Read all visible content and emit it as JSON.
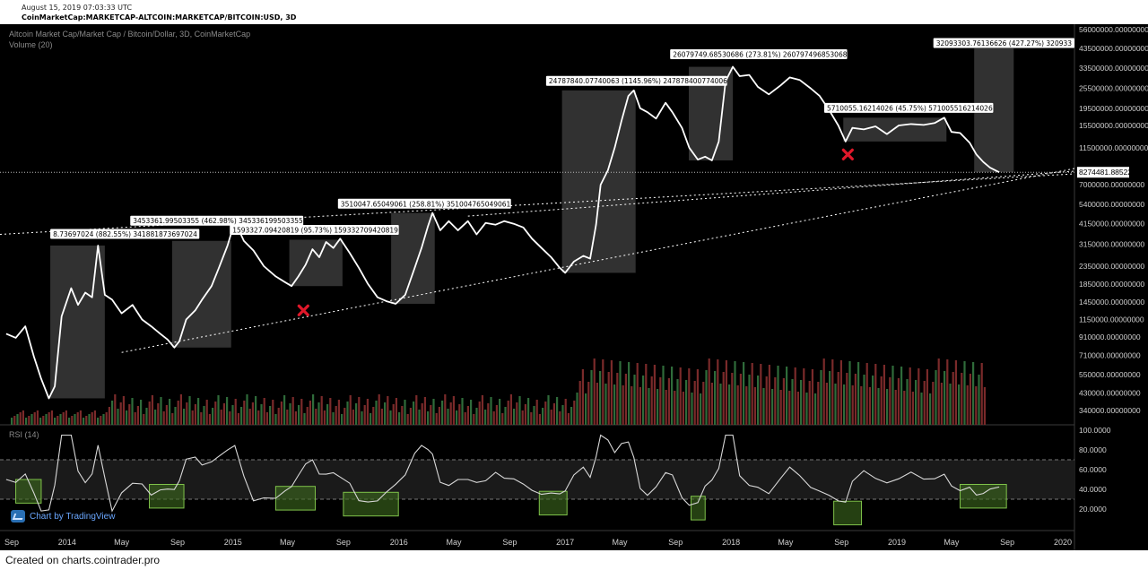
{
  "header": {
    "date": "August 15, 2019 07:03:33 UTC",
    "symbol": "CoinMarketCap:MARKETCAP-ALTCOIN:MARKETCAP/BITCOIN:USD, 3D"
  },
  "footer": {
    "text": "Created on charts.cointrader.pro"
  },
  "tv_badge": {
    "label": "Chart by TradingView"
  },
  "colors": {
    "background": "#000000",
    "price_line": "#ffffff",
    "highlight_box": "#5a5a5a",
    "rsi_box_stroke": "#7fc24a",
    "rsi_box_fill": "#3d6b1e",
    "volume_up": "#2f6b3a",
    "volume_down": "#7a2a2a",
    "marker": "#e0182a"
  },
  "chart_data": {
    "type": "line",
    "title": "Altcoin Market Cap/Market Cap / Bitcoin/Dollar, 3D, CoinMarketCap",
    "volume_label": "Volume (20)",
    "rsi_label": "RSI (14)",
    "scale": "log",
    "x_tick_labels": [
      "Sep",
      "2014",
      "May",
      "Sep",
      "2015",
      "May",
      "Sep",
      "2016",
      "May",
      "Sep",
      "2017",
      "May",
      "Sep",
      "2018",
      "May",
      "Sep",
      "2019",
      "May",
      "Sep",
      "2020"
    ],
    "y_tick_labels": [
      "56000000.00000000",
      "43500000.00000000",
      "33500000.00000000",
      "25500000.00000000",
      "19500000.00000000",
      "15500000.00000000",
      "11500000.00000000",
      "7000000.00000000",
      "5400000.00000000",
      "4150000.00000000",
      "3150000.00000000",
      "2350000.00000000",
      "1850000.00000000",
      "1450000.00000000",
      "1150000.00000000",
      "910000.00000000",
      "710000.00000000",
      "550000.00000000",
      "430000.00000000",
      "340000.00000000"
    ],
    "rsi_tick_labels": [
      "100.0000",
      "80.0000",
      "60.0000",
      "40.0000",
      "20.0000"
    ],
    "last_price_label": "8274481.88522680",
    "annotations": [
      "8.73697024 (882.55%) 341881873697024",
      "3453361.99503355 (462.98%) 345336199503355",
      "1593327.09420819 (95.73%) 159332709420819",
      "3510047.65049061 (258.81%) 351004765049061",
      "24787840.07740063 (1145.96%) 247878400774006",
      "26079749.68530686 (273.81%) 260797496853068",
      "5710055.16214026 (45.75%) 571005516214026",
      "32093303.76136626 (427.27%) 320933"
    ],
    "series": [
      {
        "values": [
          {
            "x": "2013-08-20",
            "y": 950000
          },
          {
            "x": "2013-09-10",
            "y": 900000
          },
          {
            "x": "2013-10-01",
            "y": 1050000
          },
          {
            "x": "2013-10-20",
            "y": 700000
          },
          {
            "x": "2013-11-05",
            "y": 520000
          },
          {
            "x": "2013-11-22",
            "y": 400000
          },
          {
            "x": "2013-12-05",
            "y": 470000
          },
          {
            "x": "2013-12-20",
            "y": 1200000
          },
          {
            "x": "2014-01-10",
            "y": 1750000
          },
          {
            "x": "2014-01-25",
            "y": 1400000
          },
          {
            "x": "2014-02-10",
            "y": 1650000
          },
          {
            "x": "2014-02-25",
            "y": 1550000
          },
          {
            "x": "2014-03-10",
            "y": 3100000
          },
          {
            "x": "2014-03-25",
            "y": 1600000
          },
          {
            "x": "2014-04-10",
            "y": 1500000
          },
          {
            "x": "2014-05-01",
            "y": 1250000
          },
          {
            "x": "2014-05-25",
            "y": 1400000
          },
          {
            "x": "2014-06-15",
            "y": 1150000
          },
          {
            "x": "2014-07-05",
            "y": 1050000
          },
          {
            "x": "2014-07-25",
            "y": 950000
          },
          {
            "x": "2014-08-10",
            "y": 880000
          },
          {
            "x": "2014-08-25",
            "y": 790000
          },
          {
            "x": "2014-09-05",
            "y": 860000
          },
          {
            "x": "2014-09-20",
            "y": 1150000
          },
          {
            "x": "2014-10-10",
            "y": 1300000
          },
          {
            "x": "2014-10-25",
            "y": 1500000
          },
          {
            "x": "2014-11-15",
            "y": 1800000
          },
          {
            "x": "2014-12-01",
            "y": 2300000
          },
          {
            "x": "2014-12-20",
            "y": 3100000
          },
          {
            "x": "2015-01-05",
            "y": 4300000
          },
          {
            "x": "2015-01-25",
            "y": 3300000
          },
          {
            "x": "2015-02-15",
            "y": 2900000
          },
          {
            "x": "2015-03-10",
            "y": 2350000
          },
          {
            "x": "2015-04-05",
            "y": 2050000
          },
          {
            "x": "2015-04-25",
            "y": 1900000
          },
          {
            "x": "2015-05-10",
            "y": 1800000
          },
          {
            "x": "2015-05-25",
            "y": 2050000
          },
          {
            "x": "2015-06-10",
            "y": 2400000
          },
          {
            "x": "2015-06-25",
            "y": 2950000
          },
          {
            "x": "2015-07-10",
            "y": 2650000
          },
          {
            "x": "2015-07-25",
            "y": 3250000
          },
          {
            "x": "2015-08-10",
            "y": 3000000
          },
          {
            "x": "2015-08-25",
            "y": 3400000
          },
          {
            "x": "2015-09-15",
            "y": 2800000
          },
          {
            "x": "2015-10-05",
            "y": 2300000
          },
          {
            "x": "2015-10-25",
            "y": 1850000
          },
          {
            "x": "2015-11-15",
            "y": 1550000
          },
          {
            "x": "2015-12-05",
            "y": 1470000
          },
          {
            "x": "2015-12-25",
            "y": 1420000
          },
          {
            "x": "2016-01-15",
            "y": 1600000
          },
          {
            "x": "2016-02-05",
            "y": 2300000
          },
          {
            "x": "2016-02-20",
            "y": 3000000
          },
          {
            "x": "2016-03-05",
            "y": 4000000
          },
          {
            "x": "2016-03-15",
            "y": 4800000
          },
          {
            "x": "2016-04-01",
            "y": 3800000
          },
          {
            "x": "2016-04-20",
            "y": 4300000
          },
          {
            "x": "2016-05-10",
            "y": 3800000
          },
          {
            "x": "2016-06-01",
            "y": 4300000
          },
          {
            "x": "2016-06-20",
            "y": 3600000
          },
          {
            "x": "2016-07-10",
            "y": 4200000
          },
          {
            "x": "2016-08-01",
            "y": 4100000
          },
          {
            "x": "2016-08-20",
            "y": 4300000
          },
          {
            "x": "2016-09-10",
            "y": 4150000
          },
          {
            "x": "2016-10-01",
            "y": 3950000
          },
          {
            "x": "2016-10-20",
            "y": 3400000
          },
          {
            "x": "2016-11-10",
            "y": 3000000
          },
          {
            "x": "2016-12-01",
            "y": 2650000
          },
          {
            "x": "2016-12-20",
            "y": 2300000
          },
          {
            "x": "2017-01-01",
            "y": 2150000
          },
          {
            "x": "2017-01-20",
            "y": 2500000
          },
          {
            "x": "2017-02-10",
            "y": 2700000
          },
          {
            "x": "2017-02-25",
            "y": 2600000
          },
          {
            "x": "2017-03-10",
            "y": 4100000
          },
          {
            "x": "2017-03-20",
            "y": 7000000
          },
          {
            "x": "2017-04-05",
            "y": 8500000
          },
          {
            "x": "2017-04-20",
            "y": 11500000
          },
          {
            "x": "2017-05-05",
            "y": 16500000
          },
          {
            "x": "2017-05-20",
            "y": 23000000
          },
          {
            "x": "2017-06-01",
            "y": 24800000
          },
          {
            "x": "2017-06-15",
            "y": 19500000
          },
          {
            "x": "2017-07-01",
            "y": 18500000
          },
          {
            "x": "2017-07-20",
            "y": 17000000
          },
          {
            "x": "2017-08-10",
            "y": 21000000
          },
          {
            "x": "2017-08-25",
            "y": 18500000
          },
          {
            "x": "2017-09-15",
            "y": 15000000
          },
          {
            "x": "2017-10-01",
            "y": 11500000
          },
          {
            "x": "2017-10-20",
            "y": 9800000
          },
          {
            "x": "2017-11-05",
            "y": 10200000
          },
          {
            "x": "2017-11-20",
            "y": 9700000
          },
          {
            "x": "2017-12-05",
            "y": 12500000
          },
          {
            "x": "2017-12-20",
            "y": 28000000
          },
          {
            "x": "2018-01-05",
            "y": 34000000
          },
          {
            "x": "2018-01-20",
            "y": 30000000
          },
          {
            "x": "2018-02-10",
            "y": 30500000
          },
          {
            "x": "2018-03-01",
            "y": 26000000
          },
          {
            "x": "2018-03-25",
            "y": 23500000
          },
          {
            "x": "2018-04-20",
            "y": 26500000
          },
          {
            "x": "2018-05-10",
            "y": 29500000
          },
          {
            "x": "2018-06-01",
            "y": 28500000
          },
          {
            "x": "2018-06-25",
            "y": 25500000
          },
          {
            "x": "2018-07-15",
            "y": 23000000
          },
          {
            "x": "2018-08-05",
            "y": 19000000
          },
          {
            "x": "2018-08-25",
            "y": 15500000
          },
          {
            "x": "2018-09-10",
            "y": 12500000
          },
          {
            "x": "2018-09-25",
            "y": 15000000
          },
          {
            "x": "2018-10-20",
            "y": 14700000
          },
          {
            "x": "2018-11-15",
            "y": 15300000
          },
          {
            "x": "2018-12-10",
            "y": 13800000
          },
          {
            "x": "2019-01-05",
            "y": 15500000
          },
          {
            "x": "2019-02-01",
            "y": 15800000
          },
          {
            "x": "2019-03-01",
            "y": 15600000
          },
          {
            "x": "2019-03-25",
            "y": 16000000
          },
          {
            "x": "2019-04-15",
            "y": 17200000
          },
          {
            "x": "2019-05-01",
            "y": 14200000
          },
          {
            "x": "2019-05-20",
            "y": 14000000
          },
          {
            "x": "2019-06-10",
            "y": 12300000
          },
          {
            "x": "2019-06-25",
            "y": 10500000
          },
          {
            "x": "2019-07-10",
            "y": 9500000
          },
          {
            "x": "2019-07-25",
            "y": 8800000
          },
          {
            "x": "2019-08-14",
            "y": 8274481.8852268
          }
        ]
      }
    ]
  }
}
